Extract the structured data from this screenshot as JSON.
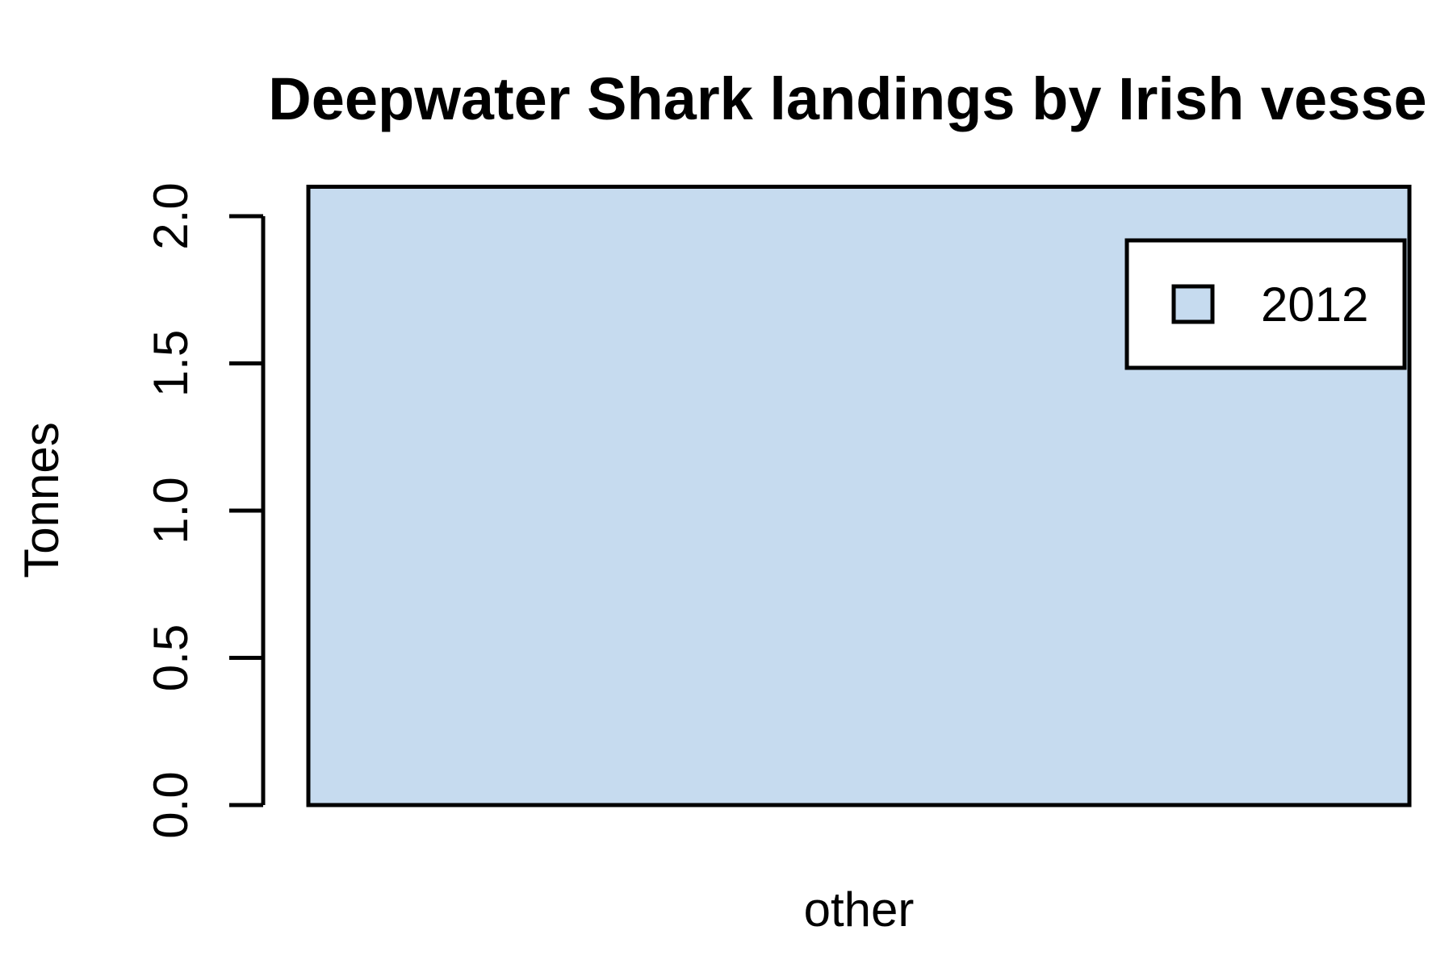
{
  "chart_data": {
    "type": "bar",
    "title": "Deepwater Shark landings by Irish vesse",
    "xlabel": "",
    "ylabel": "Tonnes",
    "categories": [
      "other"
    ],
    "series": [
      {
        "name": "2012",
        "values": [
          2.1
        ],
        "color": "#c6dbef"
      }
    ],
    "ylim": [
      0,
      2.0
    ],
    "yticks": [
      "0.0",
      "0.5",
      "1.0",
      "1.5",
      "2.0"
    ],
    "legend_position": "top-right",
    "grid": false
  }
}
